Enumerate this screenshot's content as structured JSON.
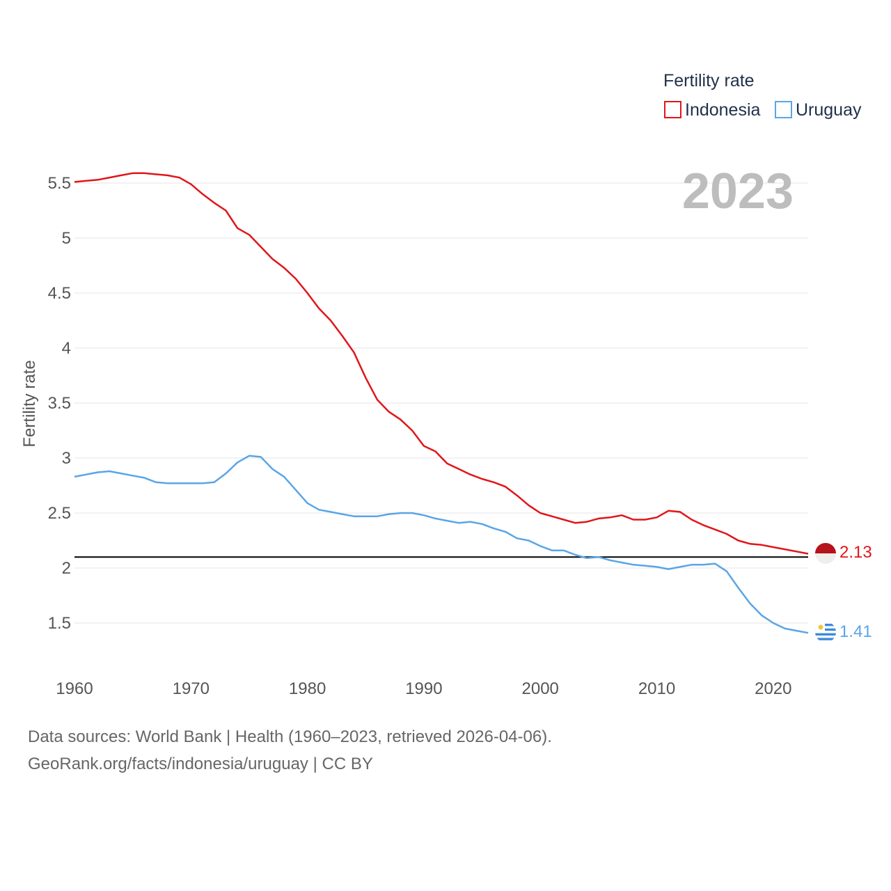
{
  "chart_data": {
    "type": "line",
    "title": "",
    "ylabel": "Fertility rate",
    "xlabel": "",
    "year_label": "2023",
    "xlim": [
      1960,
      2025
    ],
    "ylim": [
      1.2,
      5.8
    ],
    "x_ticks": [
      1960,
      1970,
      1980,
      1990,
      2000,
      2010,
      2020
    ],
    "y_ticks": [
      1.5,
      2,
      2.5,
      3,
      3.5,
      4,
      4.5,
      5,
      5.5
    ],
    "y_tick_labels": [
      "1.5",
      "2",
      "2.5",
      "3",
      "3.5",
      "4",
      "4.5",
      "5",
      "5.5"
    ],
    "grid": true,
    "legend": {
      "title": "Fertility rate",
      "position": "top-right"
    },
    "reference_line": {
      "y": 2.1,
      "color": "#000000"
    },
    "x": [
      1960,
      1961,
      1962,
      1963,
      1964,
      1965,
      1966,
      1967,
      1968,
      1969,
      1970,
      1971,
      1972,
      1973,
      1974,
      1975,
      1976,
      1977,
      1978,
      1979,
      1980,
      1981,
      1982,
      1983,
      1984,
      1985,
      1986,
      1987,
      1988,
      1989,
      1990,
      1991,
      1992,
      1993,
      1994,
      1995,
      1996,
      1997,
      1998,
      1999,
      2000,
      2001,
      2002,
      2003,
      2004,
      2005,
      2006,
      2007,
      2008,
      2009,
      2010,
      2011,
      2012,
      2013,
      2014,
      2015,
      2016,
      2017,
      2018,
      2019,
      2020,
      2021,
      2022,
      2023
    ],
    "series": [
      {
        "name": "Indonesia",
        "color": "#e0161a",
        "end_label": "2.13",
        "values": [
          5.51,
          5.52,
          5.53,
          5.55,
          5.57,
          5.59,
          5.59,
          5.58,
          5.57,
          5.55,
          5.49,
          5.4,
          5.32,
          5.25,
          5.09,
          5.03,
          4.92,
          4.81,
          4.73,
          4.63,
          4.5,
          4.36,
          4.25,
          4.11,
          3.96,
          3.73,
          3.53,
          3.42,
          3.35,
          3.25,
          3.11,
          3.06,
          2.95,
          2.9,
          2.85,
          2.81,
          2.78,
          2.74,
          2.66,
          2.57,
          2.5,
          2.47,
          2.44,
          2.41,
          2.42,
          2.45,
          2.46,
          2.48,
          2.44,
          2.44,
          2.46,
          2.52,
          2.51,
          2.44,
          2.39,
          2.35,
          2.31,
          2.25,
          2.22,
          2.21,
          2.19,
          2.17,
          2.15,
          2.13
        ]
      },
      {
        "name": "Uruguay",
        "color": "#5aa5e6",
        "end_label": "1.41",
        "values": [
          2.83,
          2.85,
          2.87,
          2.88,
          2.86,
          2.84,
          2.82,
          2.78,
          2.77,
          2.77,
          2.77,
          2.77,
          2.78,
          2.86,
          2.96,
          3.02,
          3.01,
          2.9,
          2.83,
          2.71,
          2.59,
          2.53,
          2.51,
          2.49,
          2.47,
          2.47,
          2.47,
          2.49,
          2.5,
          2.5,
          2.48,
          2.45,
          2.43,
          2.41,
          2.42,
          2.4,
          2.36,
          2.33,
          2.27,
          2.25,
          2.2,
          2.16,
          2.16,
          2.12,
          2.09,
          2.1,
          2.07,
          2.05,
          2.03,
          2.02,
          2.01,
          1.99,
          2.01,
          2.03,
          2.03,
          2.04,
          1.97,
          1.82,
          1.68,
          1.57,
          1.5,
          1.45,
          1.43,
          1.41
        ]
      }
    ]
  },
  "footer": {
    "line1": "Data sources: World Bank | Health (1960–2023, retrieved 2026-04-06).",
    "line2": "GeoRank.org/facts/indonesia/uruguay | CC BY"
  }
}
